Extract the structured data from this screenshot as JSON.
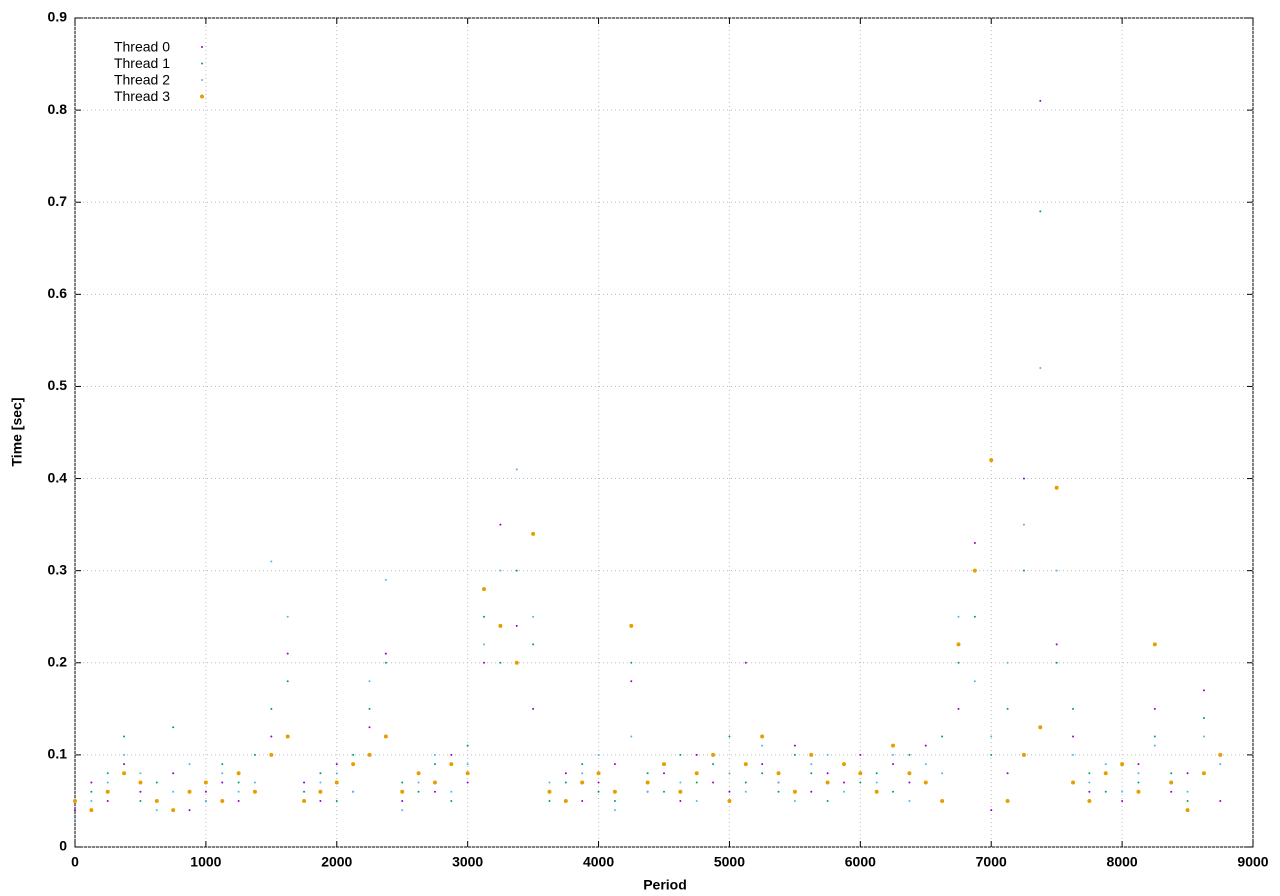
{
  "chart_data": {
    "type": "scatter",
    "x_label": "Period",
    "y_label": "Time [sec]",
    "xlim": [
      0,
      9000
    ],
    "xticks": [
      0,
      1000,
      2000,
      3000,
      4000,
      5000,
      6000,
      7000,
      8000,
      9000
    ],
    "ylim": [
      0,
      0.9
    ],
    "yticks": [
      0,
      0.1,
      0.2,
      0.3,
      0.4,
      0.5,
      0.6,
      0.7,
      0.8,
      0.9
    ],
    "grid": true,
    "legend": "top-left",
    "x": [
      0,
      125,
      250,
      375,
      500,
      625,
      750,
      875,
      1000,
      1125,
      1250,
      1375,
      1500,
      1625,
      1750,
      1875,
      2000,
      2125,
      2250,
      2375,
      2500,
      2625,
      2750,
      2875,
      3000,
      3125,
      3250,
      3375,
      3500,
      3625,
      3750,
      3875,
      4000,
      4125,
      4250,
      4375,
      4500,
      4625,
      4750,
      4875,
      5000,
      5125,
      5250,
      5375,
      5500,
      5625,
      5750,
      5875,
      6000,
      6125,
      6250,
      6375,
      6500,
      6625,
      6750,
      6875,
      7000,
      7125,
      7250,
      7375,
      7500,
      7625,
      7750,
      7875,
      8000,
      8125,
      8250,
      8375,
      8500,
      8625,
      8750
    ],
    "series": [
      {
        "name": "Thread 0",
        "color": "#9400d3",
        "marker_size": 1,
        "values": [
          0.04,
          0.07,
          0.05,
          0.09,
          0.06,
          0.05,
          0.08,
          0.04,
          0.06,
          0.07,
          0.05,
          0.06,
          0.12,
          0.21,
          0.07,
          0.05,
          0.09,
          0.06,
          0.13,
          0.21,
          0.05,
          0.08,
          0.06,
          0.1,
          0.07,
          0.2,
          0.35,
          0.24,
          0.15,
          0.06,
          0.08,
          0.05,
          0.07,
          0.09,
          0.18,
          0.06,
          0.08,
          0.05,
          0.1,
          0.07,
          0.06,
          0.2,
          0.09,
          0.07,
          0.11,
          0.06,
          0.08,
          0.07,
          0.1,
          0.06,
          0.09,
          0.07,
          0.11,
          0.05,
          0.15,
          0.33,
          0.04,
          0.08,
          0.4,
          0.81,
          0.22,
          0.12,
          0.06,
          0.08,
          0.05,
          0.09,
          0.15,
          0.06,
          0.08,
          0.17,
          0.05
        ]
      },
      {
        "name": "Thread 1",
        "color": "#009e73",
        "marker_size": 1,
        "values": [
          0.05,
          0.06,
          0.08,
          0.12,
          0.05,
          0.07,
          0.13,
          0.06,
          0.05,
          0.09,
          0.07,
          0.1,
          0.15,
          0.18,
          0.06,
          0.08,
          0.05,
          0.1,
          0.15,
          0.2,
          0.07,
          0.06,
          0.09,
          0.05,
          0.11,
          0.25,
          0.2,
          0.3,
          0.22,
          0.05,
          0.07,
          0.09,
          0.06,
          0.05,
          0.2,
          0.08,
          0.06,
          0.1,
          0.07,
          0.09,
          0.12,
          0.07,
          0.08,
          0.06,
          0.1,
          0.08,
          0.05,
          0.09,
          0.07,
          0.08,
          0.06,
          0.1,
          0.07,
          0.12,
          0.2,
          0.25,
          0.1,
          0.15,
          0.3,
          0.69,
          0.2,
          0.15,
          0.08,
          0.06,
          0.09,
          0.07,
          0.12,
          0.08,
          0.05,
          0.14,
          0.1
        ]
      },
      {
        "name": "Thread 2",
        "color": "#56b4e9",
        "marker_size": 1,
        "values": [
          0.03,
          0.05,
          0.07,
          0.1,
          0.08,
          0.04,
          0.06,
          0.09,
          0.05,
          0.08,
          0.06,
          0.07,
          0.31,
          0.25,
          0.05,
          0.07,
          0.08,
          0.06,
          0.18,
          0.29,
          0.04,
          0.07,
          0.1,
          0.06,
          0.09,
          0.22,
          0.3,
          0.41,
          0.25,
          0.07,
          0.05,
          0.08,
          0.1,
          0.04,
          0.12,
          0.06,
          0.09,
          0.07,
          0.05,
          0.1,
          0.08,
          0.06,
          0.11,
          0.07,
          0.05,
          0.09,
          0.1,
          0.06,
          0.08,
          0.07,
          0.1,
          0.05,
          0.09,
          0.08,
          0.25,
          0.18,
          0.12,
          0.2,
          0.35,
          0.52,
          0.3,
          0.1,
          0.07,
          0.09,
          0.06,
          0.08,
          0.11,
          0.07,
          0.06,
          0.12,
          0.09
        ]
      },
      {
        "name": "Thread 3",
        "color": "#e69f00",
        "marker_size": 2,
        "values": [
          0.05,
          0.04,
          0.06,
          0.08,
          0.07,
          0.05,
          0.04,
          0.06,
          0.07,
          0.05,
          0.08,
          0.06,
          0.1,
          0.12,
          0.05,
          0.06,
          0.07,
          0.09,
          0.1,
          0.12,
          0.06,
          0.08,
          0.07,
          0.09,
          0.08,
          0.28,
          0.24,
          0.2,
          0.34,
          0.06,
          0.05,
          0.07,
          0.08,
          0.06,
          0.24,
          0.07,
          0.09,
          0.06,
          0.08,
          0.1,
          0.05,
          0.09,
          0.12,
          0.08,
          0.06,
          0.1,
          0.07,
          0.09,
          0.08,
          0.06,
          0.11,
          0.08,
          0.07,
          0.05,
          0.22,
          0.3,
          0.42,
          0.05,
          0.1,
          0.13,
          0.39,
          0.07,
          0.05,
          0.08,
          0.09,
          0.06,
          0.22,
          0.07,
          0.04,
          0.08,
          0.1
        ]
      }
    ]
  }
}
